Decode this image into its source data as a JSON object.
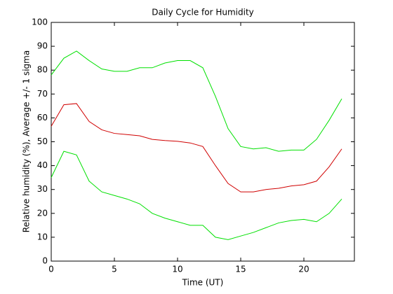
{
  "chart_data": {
    "type": "line",
    "title": "Daily Cycle for Humidity",
    "xlabel": "Time (UT)",
    "ylabel": "Relative humidity (%), Average +/- 1 sigma",
    "x": [
      0,
      1,
      2,
      3,
      4,
      5,
      6,
      7,
      8,
      9,
      10,
      11,
      12,
      13,
      14,
      15,
      16,
      17,
      18,
      19,
      20,
      21,
      22,
      23
    ],
    "series": [
      {
        "color": "#00e000",
        "values": [
          78,
          85,
          88,
          84,
          80.5,
          79.5,
          79.5,
          81,
          81,
          83,
          84,
          84,
          81,
          69,
          55.5,
          48,
          47,
          47.5,
          46,
          46.5,
          46.5,
          51,
          59,
          68
        ]
      },
      {
        "color": "#d00000",
        "values": [
          56.5,
          65.5,
          66,
          58.5,
          55,
          53.5,
          53,
          52.5,
          51,
          50.5,
          50.2,
          49.5,
          48,
          40,
          32.5,
          29,
          29,
          30,
          30.5,
          31.5,
          32,
          33.5,
          39.5,
          47
        ]
      },
      {
        "color": "#00e000",
        "values": [
          35,
          46,
          44.5,
          33.5,
          29,
          27.5,
          26,
          24,
          20,
          18,
          16.5,
          15,
          15,
          10,
          9,
          10.5,
          12,
          14,
          16,
          17,
          17.5,
          16.5,
          20,
          26
        ]
      }
    ],
    "xlim": [
      0,
      24
    ],
    "xticks": [
      0,
      5,
      10,
      15,
      20
    ],
    "ylim": [
      0,
      100
    ],
    "yticks": [
      0,
      10,
      20,
      30,
      40,
      50,
      60,
      70,
      80,
      90,
      100
    ],
    "grid": false
  }
}
